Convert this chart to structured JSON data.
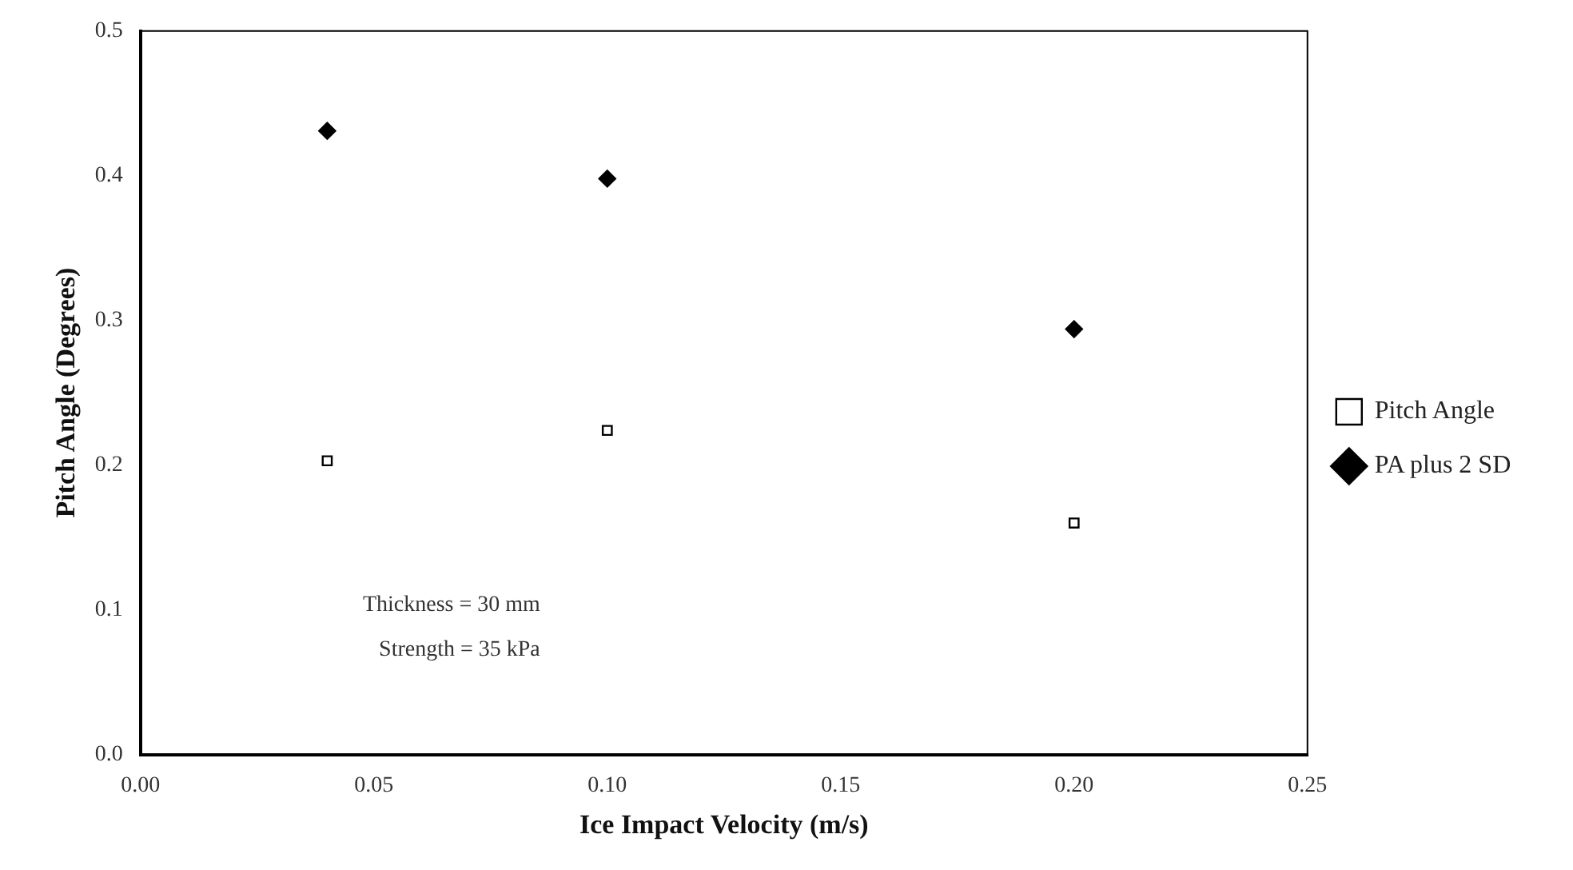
{
  "chart_data": {
    "type": "scatter",
    "xlabel": "Ice Impact Velocity (m/s)",
    "ylabel": "Pitch Angle (Degrees)",
    "x": [
      0.04,
      0.1,
      0.2
    ],
    "series": [
      {
        "name": "Pitch Angle",
        "color": "#000000",
        "marker": "square",
        "values": [
          0.203,
          0.224,
          0.16
        ]
      },
      {
        "name": "PA plus 2 SD",
        "color": "#000000",
        "marker": "diamond",
        "values": [
          0.431,
          0.398,
          0.294
        ]
      }
    ],
    "xlim": [
      0,
      0.25
    ],
    "xticks": [
      {
        "value": 0,
        "label": "0.00"
      },
      {
        "value": 0.05,
        "label": "0.05"
      },
      {
        "value": 0.1,
        "label": "0.10"
      },
      {
        "value": 0.15,
        "label": "0.15"
      },
      {
        "value": 0.2,
        "label": "0.20"
      },
      {
        "value": 0.25,
        "label": "0.25"
      }
    ],
    "ylim": [
      0,
      0.5
    ],
    "yticks": [
      {
        "value": 0,
        "label": "0.0"
      },
      {
        "value": 0.1,
        "label": "0.1"
      },
      {
        "value": 0.2,
        "label": "0.2"
      },
      {
        "value": 0.3,
        "label": "0.3"
      },
      {
        "value": 0.4,
        "label": "0.4"
      },
      {
        "value": 0.5,
        "label": "0.5"
      }
    ],
    "grid": false,
    "legend": "right",
    "annotations": [
      "Thickness = 30 mm",
      "Strength = 35 kPa"
    ]
  }
}
